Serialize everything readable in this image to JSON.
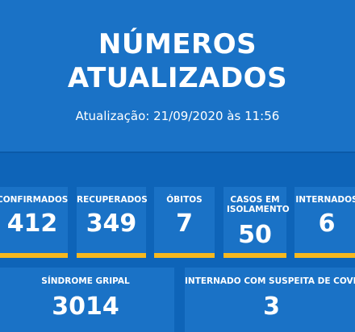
{
  "header": {
    "title_line1": "NÚMEROS",
    "title_line2": "ATUALIZADOS",
    "update_text": "Atualização: 21/09/2020 às 11:56"
  },
  "stats": [
    {
      "label": "CONFIRMADOS",
      "value": "412"
    },
    {
      "label": "RECUPERADOS",
      "value": "349"
    },
    {
      "label": "ÓBITOS",
      "value": "7"
    },
    {
      "label": "CASOS EM ISOLAMENTO",
      "value": "50"
    },
    {
      "label": "INTERNADOS",
      "value": "6"
    }
  ],
  "wide_stats": [
    {
      "label": "SÍNDROME GRIPAL",
      "value": "3014"
    },
    {
      "label": "INTERNADO COM SUSPEITA DE COVID",
      "value": "3"
    }
  ],
  "colors": {
    "background": "#0e64b8",
    "card": "#1a72c6",
    "accent_bar": "#f6b81f",
    "text": "#ffffff"
  }
}
